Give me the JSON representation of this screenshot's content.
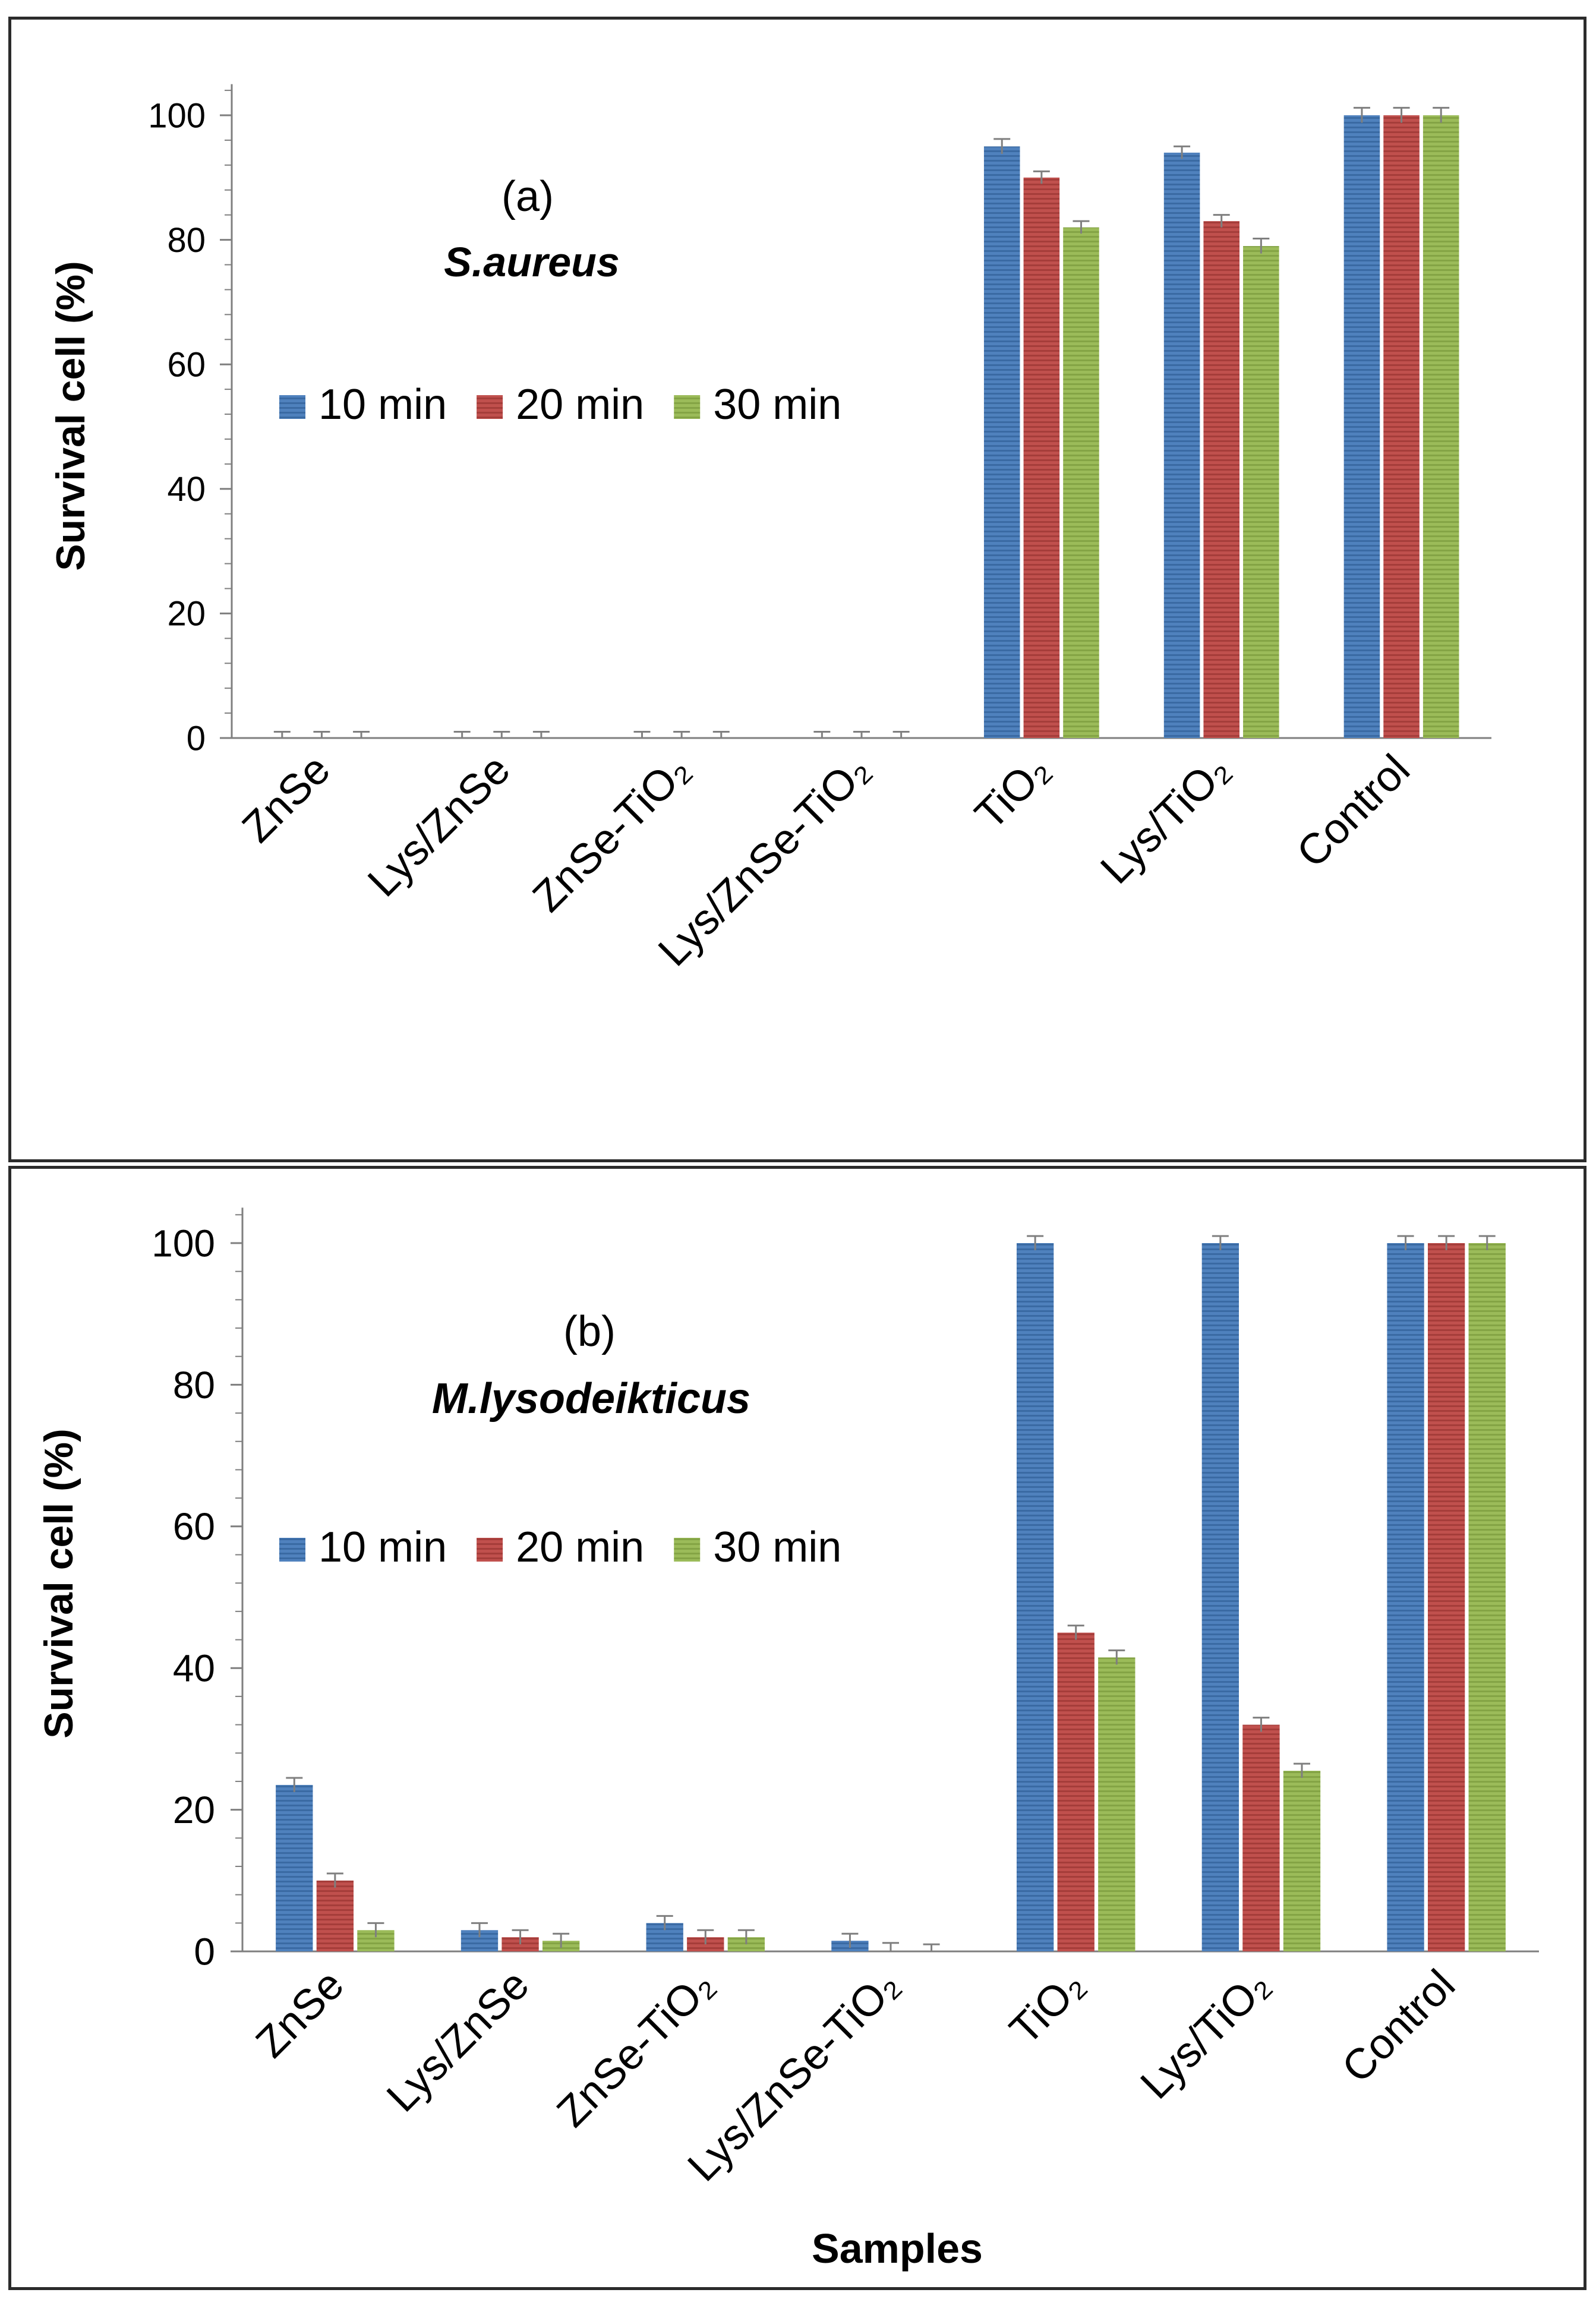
{
  "colors": {
    "10 min": "#4f81bd",
    "20 min": "#c0504d",
    "30 min": "#9bbb59",
    "axis": "#7f7f7f",
    "text": "#000000"
  },
  "chart_data": [
    {
      "type": "bar",
      "panel_label": "(a)",
      "organism": "S.aureus",
      "xlabel": "",
      "ylabel": "Survival  cell (%)",
      "ylim": [
        0,
        105
      ],
      "yticks": [
        0,
        20,
        40,
        60,
        80,
        100
      ],
      "categories": [
        "ZnSe",
        "Lys/ZnSe",
        "ZnSe-TiO₂",
        "Lys/ZnSe-TiO₂",
        "TiO₂",
        "Lys/TiO₂",
        "Control"
      ],
      "series": [
        {
          "name": "10 min",
          "values": [
            0,
            0,
            0,
            0,
            95,
            94,
            100
          ],
          "errors": [
            1,
            1,
            1,
            1,
            1.2,
            1,
            1.2
          ]
        },
        {
          "name": "20 min",
          "values": [
            0,
            0,
            0,
            0,
            90,
            83,
            100
          ],
          "errors": [
            1,
            1,
            1,
            1,
            1,
            1,
            1.2
          ]
        },
        {
          "name": "30 min",
          "values": [
            0,
            0,
            0,
            0,
            82,
            79,
            100
          ],
          "errors": [
            1,
            1,
            1,
            1,
            1,
            1.2,
            1.2
          ]
        }
      ],
      "legend": "center-left"
    },
    {
      "type": "bar",
      "panel_label": "(b)",
      "organism": "M.lysodeikticus",
      "xlabel": "Samples",
      "ylabel": "Survival  cell (%)",
      "ylim": [
        0,
        105
      ],
      "yticks": [
        0,
        20,
        40,
        60,
        80,
        100
      ],
      "categories": [
        "ZnSe",
        "Lys/ZnSe",
        "ZnSe-TiO₂",
        "Lys/ZnSe-TiO₂",
        "TiO₂",
        "Lys/TiO₂",
        "Control"
      ],
      "series": [
        {
          "name": "10 min",
          "values": [
            23.5,
            3,
            4,
            1.5,
            100,
            100,
            100
          ],
          "errors": [
            1,
            1,
            1,
            1,
            1,
            1,
            1
          ]
        },
        {
          "name": "20 min",
          "values": [
            10,
            2,
            2,
            0,
            45,
            32,
            100
          ],
          "errors": [
            1,
            1,
            1,
            1.2,
            1,
            1,
            1
          ]
        },
        {
          "name": "30 min",
          "values": [
            3,
            1.5,
            2,
            0,
            41.5,
            25.5,
            100
          ],
          "errors": [
            1,
            1,
            1,
            1,
            1,
            1,
            1
          ]
        }
      ],
      "legend": "center-left"
    }
  ]
}
